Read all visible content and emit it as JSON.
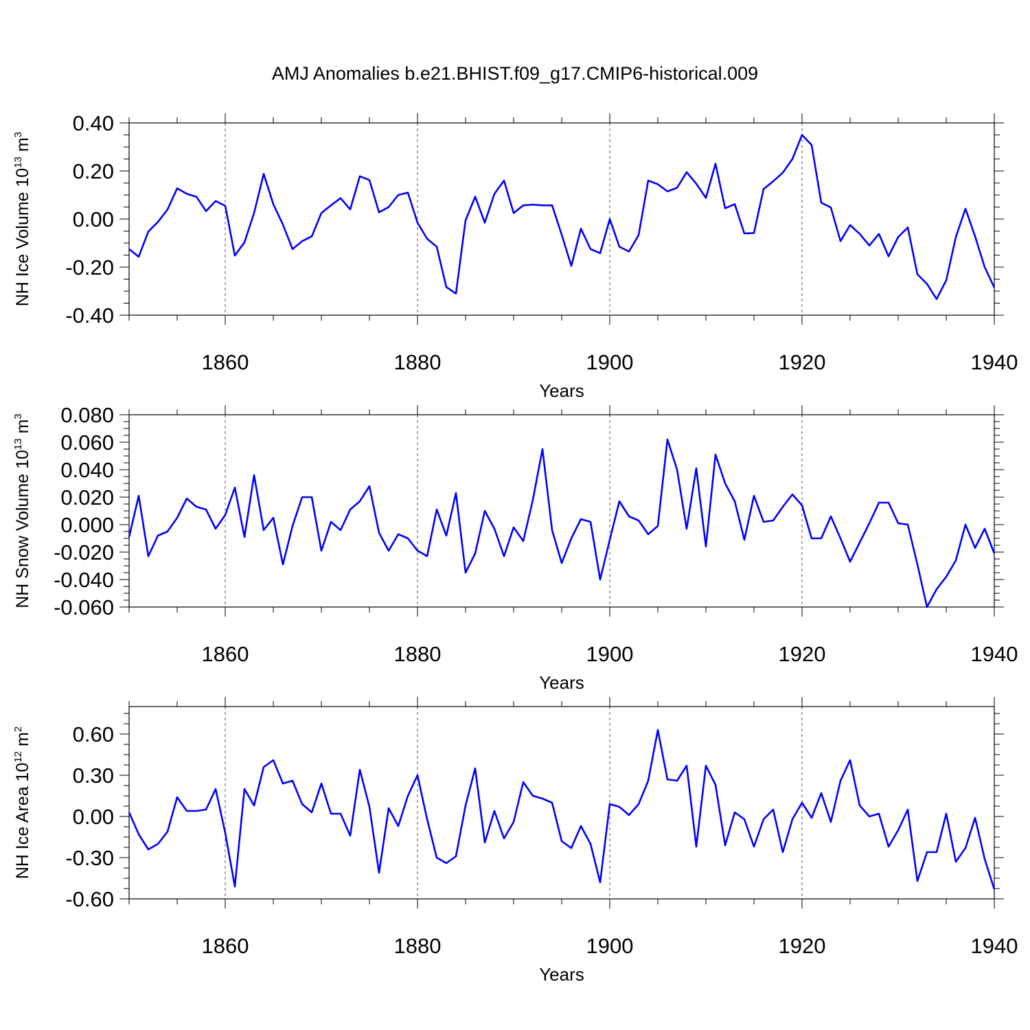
{
  "title": "AMJ Anomalies b.e21.BHIST.f09_g17.CMIP6-historical.009",
  "line_color": "#0000ff",
  "chart_data": [
    {
      "type": "line",
      "ylabel": {
        "text": "NH Ice Volume 10",
        "exp": "13",
        "unit": " m",
        "unit_exp": "3"
      },
      "xlabel": "Years",
      "xlim": [
        1850,
        1940
      ],
      "ylim": [
        -0.4,
        0.4
      ],
      "xticks": [
        1860,
        1880,
        1900,
        1920,
        1940
      ],
      "xtick_labels": [
        "1860",
        "1880",
        "1900",
        "1920",
        "1940"
      ],
      "yticks": [
        -0.4,
        -0.2,
        0.0,
        0.2,
        0.4
      ],
      "ytick_labels": [
        "-0.40",
        "-0.20",
        "0.00",
        "0.20",
        "0.40"
      ],
      "x_start": 1850,
      "values": [
        -0.125,
        -0.157,
        -0.052,
        -0.012,
        0.04,
        0.128,
        0.105,
        0.093,
        0.033,
        0.075,
        0.055,
        -0.152,
        -0.097,
        0.025,
        0.188,
        0.062,
        -0.023,
        -0.125,
        -0.092,
        -0.072,
        0.025,
        0.057,
        0.087,
        0.04,
        0.178,
        0.162,
        0.028,
        0.05,
        0.1,
        0.11,
        -0.015,
        -0.082,
        -0.115,
        -0.283,
        -0.31,
        -0.005,
        0.093,
        -0.015,
        0.105,
        0.16,
        0.025,
        0.057,
        0.06,
        0.057,
        0.057,
        -0.065,
        -0.195,
        -0.04,
        -0.125,
        -0.142,
        0.0,
        -0.115,
        -0.135,
        -0.067,
        0.16,
        0.145,
        0.115,
        0.13,
        0.195,
        0.147,
        0.088,
        0.23,
        0.045,
        0.062,
        -0.06,
        -0.058,
        0.125,
        0.157,
        0.193,
        0.25,
        0.35,
        0.308,
        0.068,
        0.048,
        -0.092,
        -0.025,
        -0.062,
        -0.11,
        -0.062,
        -0.155,
        -0.075,
        -0.035,
        -0.23,
        -0.27,
        -0.333,
        -0.255,
        -0.075,
        0.043,
        -0.072,
        -0.2,
        -0.285
      ]
    },
    {
      "type": "line",
      "ylabel": {
        "text": "NH Snow Volume 10",
        "exp": "13",
        "unit": " m",
        "unit_exp": "3"
      },
      "xlabel": "Years",
      "xlim": [
        1850,
        1940
      ],
      "ylim": [
        -0.06,
        0.08
      ],
      "xticks": [
        1860,
        1880,
        1900,
        1920,
        1940
      ],
      "xtick_labels": [
        "1860",
        "1880",
        "1900",
        "1920",
        "1940"
      ],
      "yticks": [
        -0.06,
        -0.04,
        -0.02,
        0.0,
        0.02,
        0.04,
        0.06,
        0.08
      ],
      "ytick_labels": [
        "-0.060",
        "-0.040",
        "-0.020",
        "0.000",
        "0.020",
        "0.040",
        "0.060",
        "0.080"
      ],
      "x_start": 1850,
      "values": [
        -0.009,
        0.021,
        -0.023,
        -0.008,
        -0.005,
        0.005,
        0.019,
        0.013,
        0.011,
        -0.003,
        0.007,
        0.027,
        -0.009,
        0.036,
        -0.004,
        0.005,
        -0.029,
        -0.001,
        0.02,
        0.02,
        -0.019,
        0.002,
        -0.004,
        0.011,
        0.017,
        0.028,
        -0.006,
        -0.019,
        -0.007,
        -0.01,
        -0.019,
        -0.023,
        0.011,
        -0.008,
        0.023,
        -0.035,
        -0.021,
        0.01,
        -0.003,
        -0.023,
        -0.002,
        -0.012,
        0.018,
        0.055,
        -0.004,
        -0.028,
        -0.01,
        0.004,
        0.002,
        -0.04,
        -0.011,
        0.017,
        0.006,
        0.003,
        -0.007,
        -0.001,
        0.062,
        0.04,
        -0.003,
        0.041,
        -0.016,
        0.051,
        0.03,
        0.017,
        -0.011,
        0.021,
        0.002,
        0.003,
        0.013,
        0.022,
        0.014,
        -0.01,
        -0.01,
        0.006,
        -0.01,
        -0.027,
        -0.013,
        0.001,
        0.016,
        0.016,
        0.001,
        0.0,
        -0.029,
        -0.06,
        -0.047,
        -0.038,
        -0.026,
        0.0,
        -0.017,
        -0.003,
        -0.021
      ]
    },
    {
      "type": "line",
      "ylabel": {
        "text": "NH Ice Area 10",
        "exp": "12",
        "unit": " m",
        "unit_exp": "2"
      },
      "xlabel": "Years",
      "xlim": [
        1850,
        1940
      ],
      "ylim": [
        -0.6,
        0.8
      ],
      "xticks": [
        1860,
        1880,
        1900,
        1920,
        1940
      ],
      "xtick_labels": [
        "1860",
        "1880",
        "1900",
        "1920",
        "1940"
      ],
      "yticks": [
        -0.6,
        -0.3,
        0.0,
        0.3,
        0.6
      ],
      "ytick_labels": [
        "-0.60",
        "-0.30",
        "0.00",
        "0.30",
        "0.60"
      ],
      "x_start": 1850,
      "values": [
        0.03,
        -0.13,
        -0.24,
        -0.2,
        -0.11,
        0.14,
        0.04,
        0.04,
        0.05,
        0.2,
        -0.12,
        -0.51,
        0.2,
        0.08,
        0.36,
        0.41,
        0.24,
        0.26,
        0.09,
        0.03,
        0.24,
        0.02,
        0.02,
        -0.14,
        0.34,
        0.07,
        -0.41,
        0.06,
        -0.07,
        0.15,
        0.3,
        -0.02,
        -0.3,
        -0.34,
        -0.29,
        0.08,
        0.35,
        -0.19,
        0.04,
        -0.16,
        -0.04,
        0.25,
        0.15,
        0.13,
        0.1,
        -0.18,
        -0.23,
        -0.07,
        -0.2,
        -0.48,
        0.09,
        0.07,
        0.01,
        0.09,
        0.26,
        0.63,
        0.27,
        0.26,
        0.37,
        -0.22,
        0.37,
        0.23,
        -0.21,
        0.03,
        -0.02,
        -0.22,
        -0.02,
        0.05,
        -0.26,
        -0.02,
        0.1,
        -0.01,
        0.17,
        -0.04,
        0.26,
        0.41,
        0.08,
        0.0,
        0.02,
        -0.22,
        -0.1,
        0.05,
        -0.47,
        -0.26,
        -0.26,
        0.02,
        -0.33,
        -0.23,
        -0.01,
        -0.31,
        -0.53
      ]
    }
  ]
}
